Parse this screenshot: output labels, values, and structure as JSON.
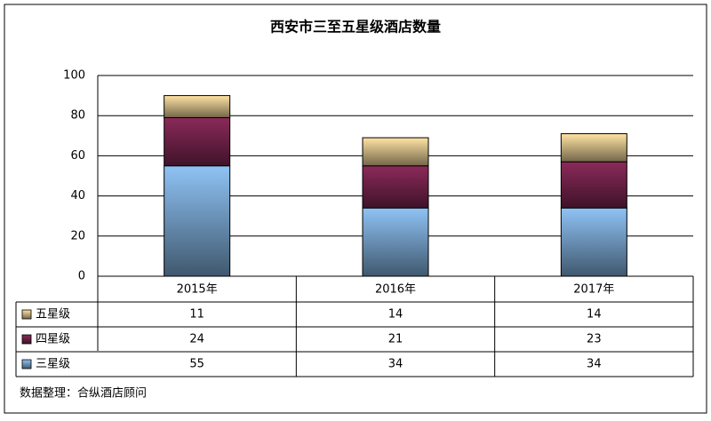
{
  "chart_data": {
    "type": "bar",
    "stacked": true,
    "title": "西安市三至五星级酒店数量",
    "categories": [
      "2015年",
      "2016年",
      "2017年"
    ],
    "series": [
      {
        "name": "三星级",
        "color": "#8fc3f5",
        "values": [
          55,
          34,
          34
        ]
      },
      {
        "name": "四星级",
        "color": "#8b2a5a",
        "values": [
          24,
          21,
          23
        ]
      },
      {
        "name": "五星级",
        "color": "#ffe3a3",
        "values": [
          11,
          14,
          14
        ]
      }
    ],
    "ylim": [
      0,
      100
    ],
    "yticks": [
      0,
      20,
      40,
      60,
      80,
      100
    ],
    "grid": true,
    "source": "数据整理：合纵酒店顾问"
  }
}
